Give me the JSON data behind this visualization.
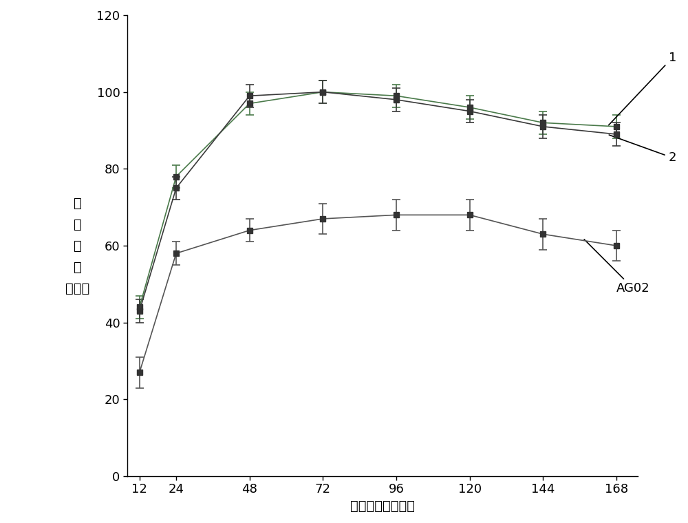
{
  "x": [
    12,
    24,
    48,
    72,
    96,
    120,
    144,
    168
  ],
  "series1_y": [
    44,
    78,
    97,
    100,
    99,
    96,
    92,
    91
  ],
  "series1_yerr": [
    3,
    3,
    3,
    3,
    3,
    3,
    3,
    3
  ],
  "series2_y": [
    43,
    75,
    99,
    100,
    98,
    95,
    91,
    89
  ],
  "series2_yerr": [
    3,
    3,
    3,
    3,
    3,
    3,
    3,
    3
  ],
  "series3_y": [
    27,
    58,
    64,
    67,
    68,
    68,
    63,
    60
  ],
  "series3_yerr": [
    4,
    3,
    3,
    4,
    4,
    4,
    4,
    4
  ],
  "series1_color": "#4a7a4a",
  "series2_color": "#3a3a3a",
  "series3_color": "#555555",
  "xlabel": "发酵时间（小时）",
  "ylabel": "相\n对\n酶\n活\n（％）",
  "ylim": [
    0,
    120
  ],
  "yticks": [
    0,
    20,
    40,
    60,
    80,
    100,
    120
  ],
  "label1": "1",
  "label2": "2",
  "label3": "AG02",
  "background_color": "#ffffff",
  "line_color": "#666666"
}
